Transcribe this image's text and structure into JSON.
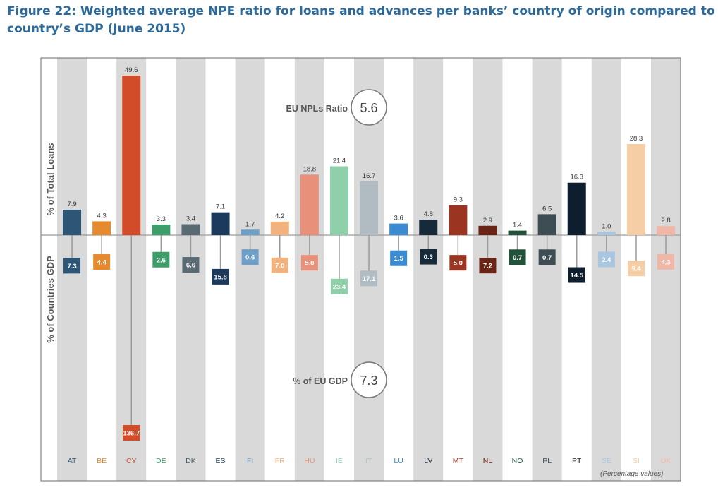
{
  "title": "Figure 22: Weighted average NPE ratio for loans and advances per banks’ country of origin compared to country’s GDP (June 2015)",
  "note": "(Percentage values)",
  "chart_data": {
    "type": "bar",
    "categories": [
      "AT",
      "BE",
      "CY",
      "DE",
      "DK",
      "ES",
      "FI",
      "FR",
      "HU",
      "IE",
      "IT",
      "LU",
      "LV",
      "MT",
      "NL",
      "NO",
      "PL",
      "PT",
      "SE",
      "SI",
      "UK"
    ],
    "series": [
      {
        "name": "% of Total Loans",
        "values": [
          7.9,
          4.3,
          49.6,
          3.3,
          3.4,
          7.1,
          1.7,
          4.2,
          18.8,
          21.4,
          16.7,
          3.6,
          4.8,
          9.3,
          2.9,
          1.4,
          6.5,
          16.3,
          1.0,
          28.3,
          2.8
        ]
      },
      {
        "name": "% of Countries GDP",
        "values": [
          7.3,
          4.4,
          136.7,
          2.6,
          6.6,
          15.8,
          0.6,
          7.0,
          5.0,
          23.4,
          17.1,
          1.5,
          0.3,
          5.0,
          7.2,
          0.7,
          0.7,
          14.5,
          2.4,
          9.4,
          4.3
        ]
      }
    ],
    "value_labels_top": [
      "7.9",
      "4.3",
      "49.6",
      "3.3",
      "3.4",
      "7.1",
      "1.7",
      "4.2",
      "18.8",
      "21.4",
      "16.7",
      "3.6",
      "4.8",
      "9.3",
      "2.9",
      "1.4",
      "6.5",
      "16.3",
      "1.0",
      "28.3",
      "2.8"
    ],
    "value_labels_bottom": [
      "7.3",
      "4.4",
      "136.7",
      "2.6",
      "6.6",
      "15.8",
      "0.6",
      "7.0",
      "5.0",
      "23.4",
      "17.1",
      "1.5",
      "0.3",
      "5.0",
      "7.2",
      "0.7",
      "0.7",
      "14.5",
      "2.4",
      "9.4",
      "4.3"
    ],
    "colors": [
      "#2d5576",
      "#e58a2e",
      "#d24c2a",
      "#3d9e6a",
      "#5a6a72",
      "#1b3a5c",
      "#6e9fc9",
      "#f2b27e",
      "#e8907a",
      "#8fd0ab",
      "#b0bcc2",
      "#3b8bd0",
      "#172a3a",
      "#9c3422",
      "#6a2416",
      "#22533a",
      "#3e4c54",
      "#0f1e2e",
      "#a9c6e0",
      "#f5cea6",
      "#f0b7a6"
    ],
    "label_colors": [
      "#3d5a80",
      "#e58a2e",
      "#d24c2a",
      "#3d9e6a",
      "#4a5a62",
      "#1b3a5c",
      "#6e9fc9",
      "#f2b27e",
      "#e8907a",
      "#8fd0ab",
      "#a9b8bf",
      "#3b8bd0",
      "#172a3a",
      "#9c3422",
      "#6a2416",
      "#22533a",
      "#3e4c54",
      "#0f1e2e",
      "#a9c6e0",
      "#f5cea6",
      "#f0b7a6"
    ],
    "ylabel_top": "% of Total Loans",
    "ylabel_bottom": "% of Countries GDP",
    "annotations": {
      "eu_npl_label": "EU NPLs Ratio",
      "eu_npl_value": "5.6",
      "eu_gdp_label": "% of EU GDP",
      "eu_gdp_value": "7.3"
    },
    "grid": false,
    "stripes": "alternating grey/white column background"
  }
}
